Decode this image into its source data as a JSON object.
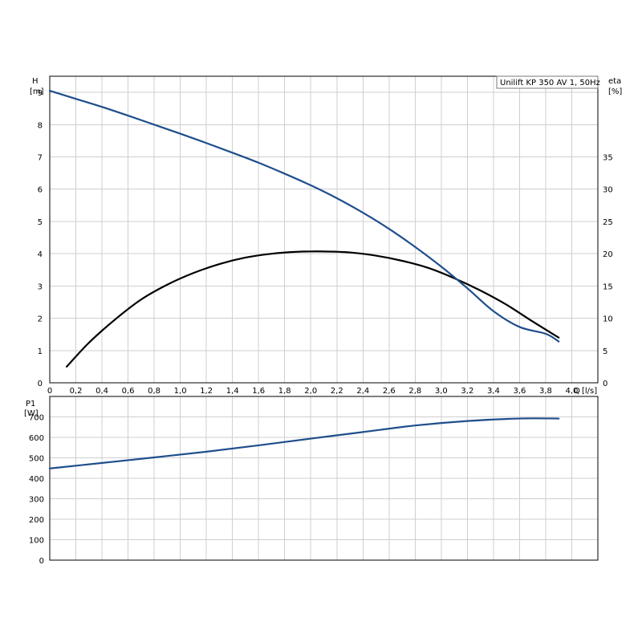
{
  "colors": {
    "head_curve": "#1f4e8c",
    "eta_curve": "#000000",
    "power_curve": "#1f4e8c",
    "grid": "#cfcfcf",
    "frame": "#000000"
  },
  "chart_data": [
    {
      "type": "line",
      "legend": "Unilift KP 350 AV 1, 50Hz",
      "xlabel": "Q [l/s]",
      "x_label_main": "Q",
      "x_label_unit": "[l/s]",
      "ylabel_left": [
        "H",
        "[m]"
      ],
      "ylabel_right": [
        "eta",
        "[%]"
      ],
      "xlim": [
        0,
        4.2
      ],
      "ylim_left": [
        0,
        9.5
      ],
      "ylim_right": [
        0,
        47.5
      ],
      "grid": true,
      "x_ticks": [
        "0",
        "0,2",
        "0,4",
        "0,6",
        "0,8",
        "1,0",
        "1,2",
        "1,4",
        "1,6",
        "1,8",
        "2,0",
        "2,2",
        "2,4",
        "2,6",
        "2,8",
        "3,0",
        "3,2",
        "3,4",
        "3,6",
        "3,8",
        "4,0"
      ],
      "y_ticks_left": [
        "0",
        "1",
        "2",
        "3",
        "4",
        "5",
        "6",
        "7",
        "8",
        "9"
      ],
      "y_ticks_right": [
        "0",
        "5",
        "10",
        "15",
        "20",
        "25",
        "30",
        "35"
      ],
      "series": [
        {
          "key": "H",
          "axis": "left",
          "x": [
            0,
            0.2,
            0.4,
            0.6,
            0.8,
            1.0,
            1.2,
            1.4,
            1.6,
            1.8,
            2.0,
            2.2,
            2.4,
            2.6,
            2.8,
            3.0,
            3.2,
            3.4,
            3.6,
            3.8,
            3.9
          ],
          "y": [
            9.05,
            8.8,
            8.55,
            8.28,
            8.0,
            7.72,
            7.43,
            7.13,
            6.82,
            6.48,
            6.12,
            5.72,
            5.27,
            4.77,
            4.21,
            3.6,
            2.93,
            2.22,
            1.73,
            1.52,
            1.28
          ]
        },
        {
          "key": "eta",
          "axis": "right",
          "x": [
            0.13,
            0.3,
            0.5,
            0.7,
            0.9,
            1.1,
            1.3,
            1.5,
            1.7,
            1.9,
            2.1,
            2.3,
            2.5,
            2.7,
            2.9,
            3.1,
            3.3,
            3.5,
            3.7,
            3.9
          ],
          "y": [
            2.5,
            6.2,
            9.8,
            12.9,
            15.2,
            17.0,
            18.4,
            19.4,
            20.0,
            20.3,
            20.35,
            20.2,
            19.7,
            18.9,
            17.8,
            16.2,
            14.3,
            12.1,
            9.5,
            7.0
          ]
        }
      ]
    },
    {
      "type": "line",
      "xlim": [
        0,
        4.2
      ],
      "ylim": [
        0,
        800
      ],
      "ylabel": [
        "P1",
        "[W]"
      ],
      "grid": true,
      "y_ticks": [
        "0",
        "100",
        "200",
        "300",
        "400",
        "500",
        "600",
        "700"
      ],
      "series": [
        {
          "key": "P1",
          "x": [
            0,
            0.4,
            0.8,
            1.2,
            1.6,
            2.0,
            2.4,
            2.8,
            3.2,
            3.6,
            3.9
          ],
          "y": [
            448,
            475,
            502,
            530,
            561,
            594,
            626,
            658,
            680,
            692,
            692
          ]
        }
      ]
    }
  ]
}
